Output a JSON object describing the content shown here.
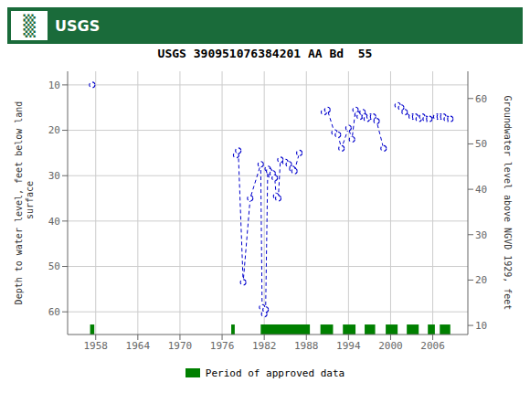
{
  "chart_data": {
    "type": "line",
    "title": "USGS 390951076384201 AA Bd  55",
    "header": {
      "text": "USGS",
      "logo": "▒",
      "color": "#1a6b3a"
    },
    "y_label": "Depth to water level, feet below land\n surface",
    "y2_label": "Groundwater level above NGVD 1929, feet",
    "xlim": [
      1954,
      2011
    ],
    "ylim": [
      65,
      7
    ],
    "y2lim": [
      8,
      66
    ],
    "xticks": [
      1958,
      1964,
      1970,
      1976,
      1982,
      1988,
      1994,
      2000,
      2006
    ],
    "yticks": [
      10,
      20,
      30,
      40,
      50,
      60
    ],
    "y2ticks": [
      10,
      20,
      30,
      40,
      50,
      60
    ],
    "grid": true,
    "legend": "bottom",
    "color": "#0000cc",
    "marker": "circle",
    "line_style": "dashed",
    "x": [
      1957.5,
      null,
      1978.0,
      1978.3,
      1979.0,
      1980.0,
      1981.5,
      1981.7,
      1982.0,
      1982.2,
      1982.5,
      1982.7,
      1983.0,
      1983.2,
      1983.5,
      1983.7,
      1984.0,
      1984.3,
      1985.0,
      1985.5,
      1986.0,
      1986.3,
      1987.0,
      null,
      1990.5,
      1991.0,
      1992.0,
      1992.5,
      1993.0,
      1994.0,
      1994.5,
      1995.0,
      1995.3,
      1995.6,
      1996.0,
      1996.3,
      1996.6,
      1997.0,
      1997.5,
      1998.0,
      1999.0,
      null,
      2001.0,
      2001.5,
      2002.0,
      2003.0,
      2003.5,
      2004.0,
      2004.5,
      2005.0,
      2005.5,
      2006.5,
      2007.0,
      2007.5,
      2008.0,
      2008.5
    ],
    "values": [
      10.0,
      null,
      25.5,
      24.5,
      53.5,
      35.0,
      27.5,
      59.0,
      60.5,
      59.5,
      28.5,
      29.0,
      30.0,
      29.5,
      30.5,
      34.5,
      35.0,
      26.5,
      27.0,
      27.5,
      28.5,
      29.0,
      25.0,
      null,
      16.0,
      15.5,
      20.5,
      21.0,
      24.0,
      19.5,
      22.0,
      15.5,
      16.5,
      17.0,
      16.0,
      17.0,
      17.5,
      17.0,
      17.0,
      18.0,
      24.0,
      null,
      14.5,
      15.0,
      16.0,
      17.0,
      17.0,
      17.5,
      17.0,
      17.5,
      17.5,
      17.0,
      17.0,
      17.0,
      17.5,
      17.5
    ],
    "approved_periods": {
      "name": "Period of approved data",
      "color": "#008000",
      "ranges": [
        [
          1957.2,
          1957.8
        ],
        [
          1977.3,
          1977.8
        ],
        [
          1981.5,
          1988.5
        ],
        [
          1990.0,
          1991.8
        ],
        [
          1993.2,
          1995.0
        ],
        [
          1996.3,
          1997.8
        ],
        [
          1999.3,
          2001.0
        ],
        [
          2002.3,
          2004.0
        ],
        [
          2005.3,
          2006.3
        ],
        [
          2007.0,
          2008.5
        ]
      ]
    }
  }
}
